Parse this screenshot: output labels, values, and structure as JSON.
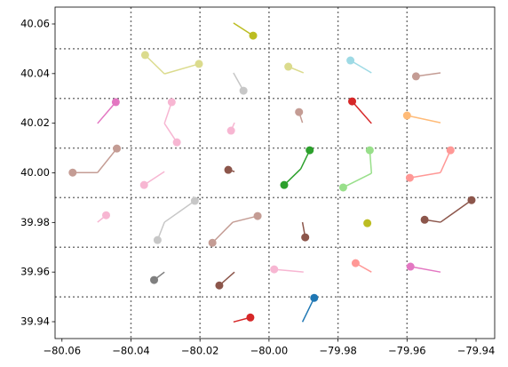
{
  "chart_data": {
    "type": "line",
    "xlim": [
      -80.062,
      -79.9346
    ],
    "ylim": [
      39.9332,
      40.0668
    ],
    "xticks": [
      {
        "value": -80.06,
        "label": "−80.06"
      },
      {
        "value": -80.04,
        "label": "−80.04"
      },
      {
        "value": -80.02,
        "label": "−80.02"
      },
      {
        "value": -80.0,
        "label": "−80.00"
      },
      {
        "value": -79.98,
        "label": "−79.98"
      },
      {
        "value": -79.96,
        "label": "−79.96"
      },
      {
        "value": -79.94,
        "label": "−79.94"
      }
    ],
    "yticks": [
      39.94,
      39.96,
      39.98,
      {
        "value": 40.0,
        "label": "40.00"
      },
      40.02,
      40.04,
      40.06
    ],
    "grid_x": [
      -80.04,
      -80.02,
      -80.0,
      -79.98,
      -79.96
    ],
    "grid_y": [
      39.95,
      39.97,
      39.99,
      40.01,
      40.03,
      40.05
    ],
    "series": [
      {
        "color": "#bcbd22",
        "x": [
          -80.0103,
          -80.0046
        ],
        "y": [
          40.0604,
          40.0553
        ]
      },
      {
        "color": "#dbdb8d",
        "x": [
          -80.0303,
          -80.0359
        ],
        "y": [
          40.0399,
          40.0475
        ]
      },
      {
        "color": "#dbdb8d",
        "x": [
          -80.0303,
          -80.0203
        ],
        "y": [
          40.0399,
          40.0439
        ]
      },
      {
        "color": "#c7c7c7",
        "x": [
          -80.0103,
          -80.0074
        ],
        "y": [
          40.0403,
          40.0331
        ]
      },
      {
        "color": "#dbdb8d",
        "x": [
          -79.99,
          -79.9944
        ],
        "y": [
          40.0403,
          40.0428
        ]
      },
      {
        "color": "#9edae5",
        "x": [
          -79.9703,
          -79.9764
        ],
        "y": [
          40.0403,
          40.0453
        ]
      },
      {
        "color": "#c49c94",
        "x": [
          -79.9503,
          -79.9574
        ],
        "y": [
          40.0403,
          40.0389
        ]
      },
      {
        "color": "#e377c2",
        "x": [
          -80.0497,
          -80.0444
        ],
        "y": [
          40.0199,
          40.0285
        ]
      },
      {
        "color": "#f7b6d2",
        "x": [
          -80.0303,
          -80.0282
        ],
        "y": [
          40.0199,
          40.0285
        ]
      },
      {
        "color": "#f7b6d2",
        "x": [
          -80.0303,
          -80.0267
        ],
        "y": [
          40.0199,
          40.0123
        ]
      },
      {
        "color": "#f7b6d2",
        "x": [
          -80.01,
          -80.011
        ],
        "y": [
          40.0202,
          40.017
        ]
      },
      {
        "color": "#c49c94",
        "x": [
          -79.9903,
          -79.9913
        ],
        "y": [
          40.0202,
          40.0245
        ]
      },
      {
        "color": "#d62728",
        "x": [
          -79.9703,
          -79.9759
        ],
        "y": [
          40.0199,
          40.0288
        ]
      },
      {
        "color": "#ffbb78",
        "x": [
          -79.9503,
          -79.96
        ],
        "y": [
          40.0202,
          40.0231
        ]
      },
      {
        "color": "#c49c94",
        "x": [
          -80.0497,
          -80.0569
        ],
        "y": [
          40.0001,
          40.0001
        ]
      },
      {
        "color": "#c49c94",
        "x": [
          -80.0497,
          -80.0441
        ],
        "y": [
          40.0001,
          40.0098
        ]
      },
      {
        "color": "#f7b6d2",
        "x": [
          -80.0303,
          -80.0362
        ],
        "y": [
          40.0005,
          39.9951
        ]
      },
      {
        "color": "#8c564b",
        "x": [
          -80.01,
          -80.0118
        ],
        "y": [
          40.0005,
          40.0012
        ]
      },
      {
        "color": "#2ca02c",
        "x": [
          -79.9908,
          -79.9882
        ],
        "y": [
          40.0016,
          40.0091
        ]
      },
      {
        "color": "#2ca02c",
        "x": [
          -79.9908,
          -79.9956
        ],
        "y": [
          40.0016,
          39.9951
        ]
      },
      {
        "color": "#98df8a",
        "x": [
          -79.9703,
          -79.9708
        ],
        "y": [
          39.9998,
          40.0091
        ]
      },
      {
        "color": "#98df8a",
        "x": [
          -79.9703,
          -79.9785
        ],
        "y": [
          39.9998,
          39.9941
        ]
      },
      {
        "color": "#ff9896",
        "x": [
          -79.9503,
          -79.9474
        ],
        "y": [
          40.0001,
          40.0091
        ]
      },
      {
        "color": "#ff9896",
        "x": [
          -79.9503,
          -79.9592
        ],
        "y": [
          40.0001,
          39.998
        ]
      },
      {
        "color": "#f7b6d2",
        "x": [
          -80.0497,
          -80.0472
        ],
        "y": [
          39.9801,
          39.9829
        ]
      },
      {
        "color": "#c7c7c7",
        "x": [
          -80.0303,
          -80.0215
        ],
        "y": [
          39.9801,
          39.9887
        ]
      },
      {
        "color": "#c7c7c7",
        "x": [
          -80.0303,
          -80.0323
        ],
        "y": [
          39.9801,
          39.9729
        ]
      },
      {
        "color": "#c49c94",
        "x": [
          -80.0105,
          -80.0033
        ],
        "y": [
          39.9801,
          39.9826
        ]
      },
      {
        "color": "#c49c94",
        "x": [
          -80.0105,
          -80.0164
        ],
        "y": [
          39.9801,
          39.9718
        ]
      },
      {
        "color": "#8c564b",
        "x": [
          -79.9903,
          -79.9895
        ],
        "y": [
          39.9801,
          39.974
        ]
      },
      {
        "color": "#bcbd22",
        "x": [
          -79.9705,
          -79.9715
        ],
        "y": [
          39.9797,
          39.9797
        ]
      },
      {
        "color": "#8c564b",
        "x": [
          -79.9503,
          -79.9413
        ],
        "y": [
          39.9801,
          39.989
        ]
      },
      {
        "color": "#8c564b",
        "x": [
          -79.9503,
          -79.9549
        ],
        "y": [
          39.9801,
          39.9811
        ]
      },
      {
        "color": "#7f7f7f",
        "x": [
          -80.0303,
          -80.0333
        ],
        "y": [
          39.96,
          39.9568
        ]
      },
      {
        "color": "#8c564b",
        "x": [
          -80.01,
          -80.0144
        ],
        "y": [
          39.96,
          39.9546
        ]
      },
      {
        "color": "#f7b6d2",
        "x": [
          -79.99,
          -79.9985
        ],
        "y": [
          39.96,
          39.9611
        ]
      },
      {
        "color": "#ff9896",
        "x": [
          -79.9703,
          -79.9749
        ],
        "y": [
          39.96,
          39.9636
        ]
      },
      {
        "color": "#e377c2",
        "x": [
          -79.9503,
          -79.959
        ],
        "y": [
          39.96,
          39.9622
        ]
      },
      {
        "color": "#d62728",
        "x": [
          -80.0103,
          -80.0054
        ],
        "y": [
          39.9399,
          39.9417
        ]
      },
      {
        "color": "#1f77b4",
        "x": [
          -79.9903,
          -79.9869
        ],
        "y": [
          39.9399,
          39.9496
        ]
      }
    ]
  }
}
